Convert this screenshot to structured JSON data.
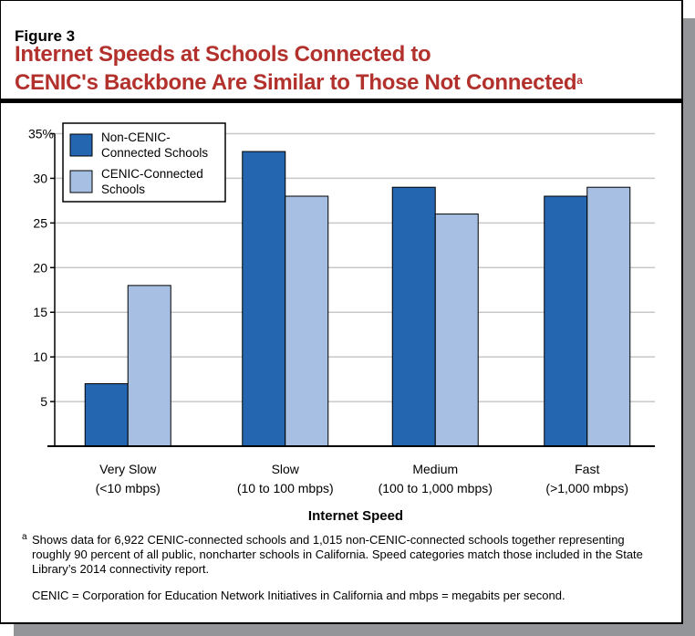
{
  "figure_label": "Figure 3",
  "title_line1": "Internet Speeds at Schools Connected to",
  "title_line2": "CENIC's Backbone Are Similar to Those Not Connected",
  "title_footnote_mark": "a",
  "chart_data": {
    "type": "bar",
    "title": "Internet Speeds at Schools Connected to CENIC's Backbone Are Similar to Those Not Connected",
    "xlabel": "Internet Speed",
    "ylabel": "",
    "categories": [
      [
        "Very Slow",
        "(<10 mbps)"
      ],
      [
        "Slow",
        "(10 to 100 mbps)"
      ],
      [
        "Medium",
        "(100 to 1,000 mbps)"
      ],
      [
        "Fast",
        "(>1,000 mbps)"
      ]
    ],
    "series": [
      {
        "name": "Non-CENIC-Connected Schools",
        "legend_lines": [
          "Non-CENIC-",
          "Connected Schools"
        ],
        "color": "#2566b0",
        "values": [
          7,
          33,
          29,
          28
        ]
      },
      {
        "name": "CENIC-Connected Schools",
        "legend_lines": [
          "CENIC-Connected",
          "Schools"
        ],
        "color": "#a6bfe3",
        "values": [
          18,
          28,
          26,
          29
        ]
      }
    ],
    "ylim": [
      0,
      35
    ],
    "yticks": [
      "",
      "5",
      "10",
      "15",
      "20",
      "25",
      "30",
      "35%"
    ],
    "grid": true,
    "legend": "top-left"
  },
  "footnote_mark": "a",
  "footnote": "Shows data for 6,922 CENIC-connected schools and 1,015 non-CENIC-connected schools together representing roughly 90 percent of all public, noncharter schools in California. Speed categories match those included in the State Library’s 2014 connectivity report.",
  "note": "CENIC = Corporation for Education Network Initiatives in California and mbps = megabits per second."
}
